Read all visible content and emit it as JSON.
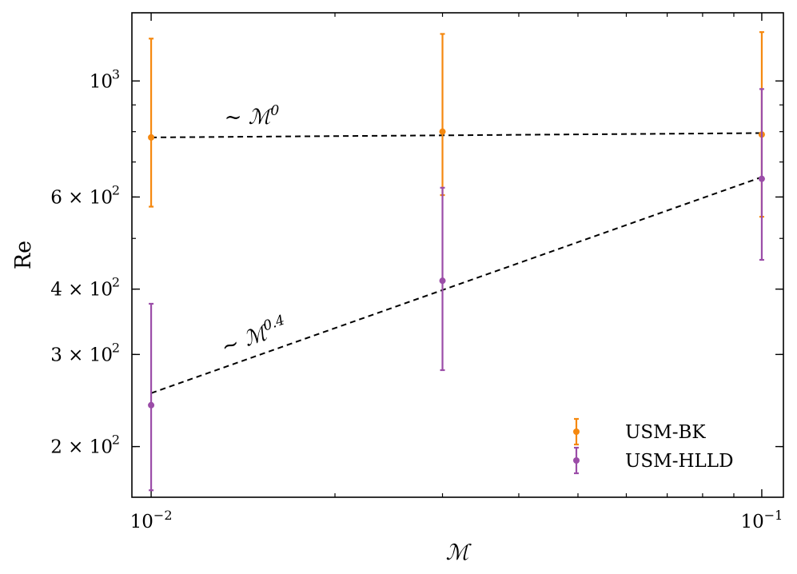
{
  "chart_data": {
    "type": "scatter",
    "title": "",
    "xlabel": "ℳ",
    "ylabel": "Re",
    "xscale": "log",
    "yscale": "log",
    "xlim": [
      0.0093,
      0.1085
    ],
    "ylim": [
      160,
      1350
    ],
    "grid": false,
    "legend_position": "lower-right",
    "x_tick_labels": [
      {
        "value": 0.01,
        "base": "10",
        "exp": "−2"
      },
      {
        "value": 0.1,
        "base": "10",
        "exp": "−1"
      }
    ],
    "y_tick_labels": [
      {
        "value": 200,
        "coef": "2 × 10",
        "exp": "2"
      },
      {
        "value": 300,
        "coef": "3 × 10",
        "exp": "2"
      },
      {
        "value": 400,
        "coef": "4 × 10",
        "exp": "2"
      },
      {
        "value": 600,
        "coef": "6 × 10",
        "exp": "2"
      },
      {
        "value": 1000,
        "coef": "10",
        "exp": "3"
      }
    ],
    "series": [
      {
        "name": "USM-BK",
        "color": "#f5880f",
        "x": [
          0.01,
          0.03,
          0.1
        ],
        "y": [
          780,
          800,
          790
        ],
        "yerr_low": [
          575,
          605,
          550
        ],
        "yerr_high": [
          1205,
          1230,
          1240
        ]
      },
      {
        "name": "USM-HLLD",
        "color": "#9b4da8",
        "x": [
          0.01,
          0.03,
          0.1
        ],
        "y": [
          240,
          415,
          650
        ],
        "yerr_low": [
          165,
          280,
          455
        ],
        "yerr_high": [
          375,
          625,
          965
        ]
      }
    ],
    "reference_lines": [
      {
        "label_base": "∼ ℳ",
        "label_exp": "0",
        "x": [
          0.01,
          0.1
        ],
        "y": [
          780,
          795
        ],
        "color": "#000000",
        "style": "dashed"
      },
      {
        "label_base": "∼ ℳ",
        "label_exp": "0.4",
        "x": [
          0.01,
          0.1
        ],
        "y": [
          253,
          655
        ],
        "color": "#000000",
        "style": "dashed"
      }
    ]
  }
}
